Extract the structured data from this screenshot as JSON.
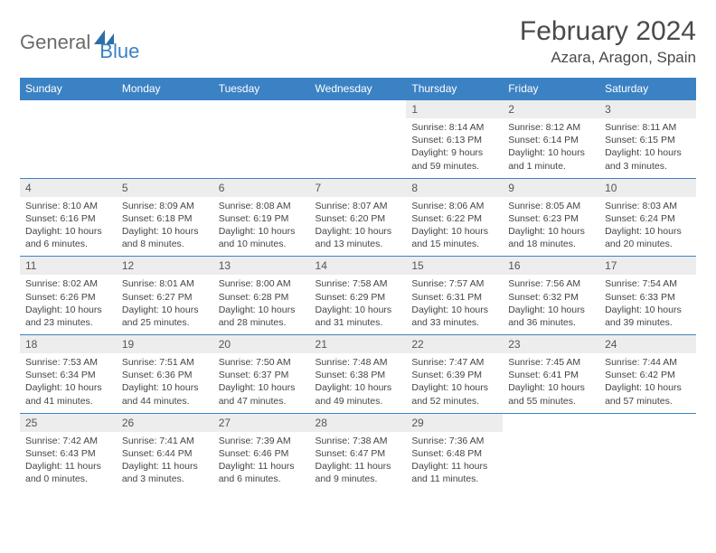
{
  "logo": {
    "part1": "General",
    "part2": "Blue"
  },
  "title": "February 2024",
  "location": "Azara, Aragon, Spain",
  "colors": {
    "header_bg": "#3b82c4",
    "header_text": "#ffffff",
    "daynum_bg": "#ededed",
    "border": "#3b82c4",
    "logo_gray": "#6b6b6b",
    "logo_blue": "#3b82c4"
  },
  "weekdays": [
    "Sunday",
    "Monday",
    "Tuesday",
    "Wednesday",
    "Thursday",
    "Friday",
    "Saturday"
  ],
  "first_weekday_index": 4,
  "days": [
    {
      "n": 1,
      "sunrise": "8:14 AM",
      "sunset": "6:13 PM",
      "daylight": "9 hours and 59 minutes."
    },
    {
      "n": 2,
      "sunrise": "8:12 AM",
      "sunset": "6:14 PM",
      "daylight": "10 hours and 1 minute."
    },
    {
      "n": 3,
      "sunrise": "8:11 AM",
      "sunset": "6:15 PM",
      "daylight": "10 hours and 3 minutes."
    },
    {
      "n": 4,
      "sunrise": "8:10 AM",
      "sunset": "6:16 PM",
      "daylight": "10 hours and 6 minutes."
    },
    {
      "n": 5,
      "sunrise": "8:09 AM",
      "sunset": "6:18 PM",
      "daylight": "10 hours and 8 minutes."
    },
    {
      "n": 6,
      "sunrise": "8:08 AM",
      "sunset": "6:19 PM",
      "daylight": "10 hours and 10 minutes."
    },
    {
      "n": 7,
      "sunrise": "8:07 AM",
      "sunset": "6:20 PM",
      "daylight": "10 hours and 13 minutes."
    },
    {
      "n": 8,
      "sunrise": "8:06 AM",
      "sunset": "6:22 PM",
      "daylight": "10 hours and 15 minutes."
    },
    {
      "n": 9,
      "sunrise": "8:05 AM",
      "sunset": "6:23 PM",
      "daylight": "10 hours and 18 minutes."
    },
    {
      "n": 10,
      "sunrise": "8:03 AM",
      "sunset": "6:24 PM",
      "daylight": "10 hours and 20 minutes."
    },
    {
      "n": 11,
      "sunrise": "8:02 AM",
      "sunset": "6:26 PM",
      "daylight": "10 hours and 23 minutes."
    },
    {
      "n": 12,
      "sunrise": "8:01 AM",
      "sunset": "6:27 PM",
      "daylight": "10 hours and 25 minutes."
    },
    {
      "n": 13,
      "sunrise": "8:00 AM",
      "sunset": "6:28 PM",
      "daylight": "10 hours and 28 minutes."
    },
    {
      "n": 14,
      "sunrise": "7:58 AM",
      "sunset": "6:29 PM",
      "daylight": "10 hours and 31 minutes."
    },
    {
      "n": 15,
      "sunrise": "7:57 AM",
      "sunset": "6:31 PM",
      "daylight": "10 hours and 33 minutes."
    },
    {
      "n": 16,
      "sunrise": "7:56 AM",
      "sunset": "6:32 PM",
      "daylight": "10 hours and 36 minutes."
    },
    {
      "n": 17,
      "sunrise": "7:54 AM",
      "sunset": "6:33 PM",
      "daylight": "10 hours and 39 minutes."
    },
    {
      "n": 18,
      "sunrise": "7:53 AM",
      "sunset": "6:34 PM",
      "daylight": "10 hours and 41 minutes."
    },
    {
      "n": 19,
      "sunrise": "7:51 AM",
      "sunset": "6:36 PM",
      "daylight": "10 hours and 44 minutes."
    },
    {
      "n": 20,
      "sunrise": "7:50 AM",
      "sunset": "6:37 PM",
      "daylight": "10 hours and 47 minutes."
    },
    {
      "n": 21,
      "sunrise": "7:48 AM",
      "sunset": "6:38 PM",
      "daylight": "10 hours and 49 minutes."
    },
    {
      "n": 22,
      "sunrise": "7:47 AM",
      "sunset": "6:39 PM",
      "daylight": "10 hours and 52 minutes."
    },
    {
      "n": 23,
      "sunrise": "7:45 AM",
      "sunset": "6:41 PM",
      "daylight": "10 hours and 55 minutes."
    },
    {
      "n": 24,
      "sunrise": "7:44 AM",
      "sunset": "6:42 PM",
      "daylight": "10 hours and 57 minutes."
    },
    {
      "n": 25,
      "sunrise": "7:42 AM",
      "sunset": "6:43 PM",
      "daylight": "11 hours and 0 minutes."
    },
    {
      "n": 26,
      "sunrise": "7:41 AM",
      "sunset": "6:44 PM",
      "daylight": "11 hours and 3 minutes."
    },
    {
      "n": 27,
      "sunrise": "7:39 AM",
      "sunset": "6:46 PM",
      "daylight": "11 hours and 6 minutes."
    },
    {
      "n": 28,
      "sunrise": "7:38 AM",
      "sunset": "6:47 PM",
      "daylight": "11 hours and 9 minutes."
    },
    {
      "n": 29,
      "sunrise": "7:36 AM",
      "sunset": "6:48 PM",
      "daylight": "11 hours and 11 minutes."
    }
  ],
  "labels": {
    "sunrise": "Sunrise:",
    "sunset": "Sunset:",
    "daylight": "Daylight:"
  }
}
